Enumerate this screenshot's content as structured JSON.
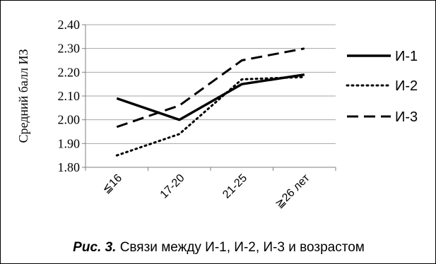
{
  "chart_data": {
    "type": "line",
    "title": "",
    "xlabel": "",
    "ylabel": "Средний балл ИЗ",
    "categories": [
      "≦16",
      "17-20",
      "21-25",
      "≧26 лет"
    ],
    "ylim": [
      1.8,
      2.4
    ],
    "yticks": [
      "1.80",
      "1.90",
      "2.00",
      "2.10",
      "2.20",
      "2.30",
      "2.40"
    ],
    "grid": true,
    "legend_position": "right",
    "series": [
      {
        "name": "И-1",
        "values": [
          2.09,
          2.0,
          2.15,
          2.19
        ],
        "dash": "solid",
        "color": "#000000"
      },
      {
        "name": "И-2",
        "values": [
          1.85,
          1.94,
          2.17,
          2.18
        ],
        "dash": "dotted",
        "color": "#000000"
      },
      {
        "name": "И-3",
        "values": [
          1.97,
          2.06,
          2.25,
          2.3
        ],
        "dash": "dashed",
        "color": "#000000"
      }
    ]
  },
  "caption": {
    "lead": "Рис. 3.",
    "text": " Связи между И-1, И-2, И-3 и возрастом"
  }
}
